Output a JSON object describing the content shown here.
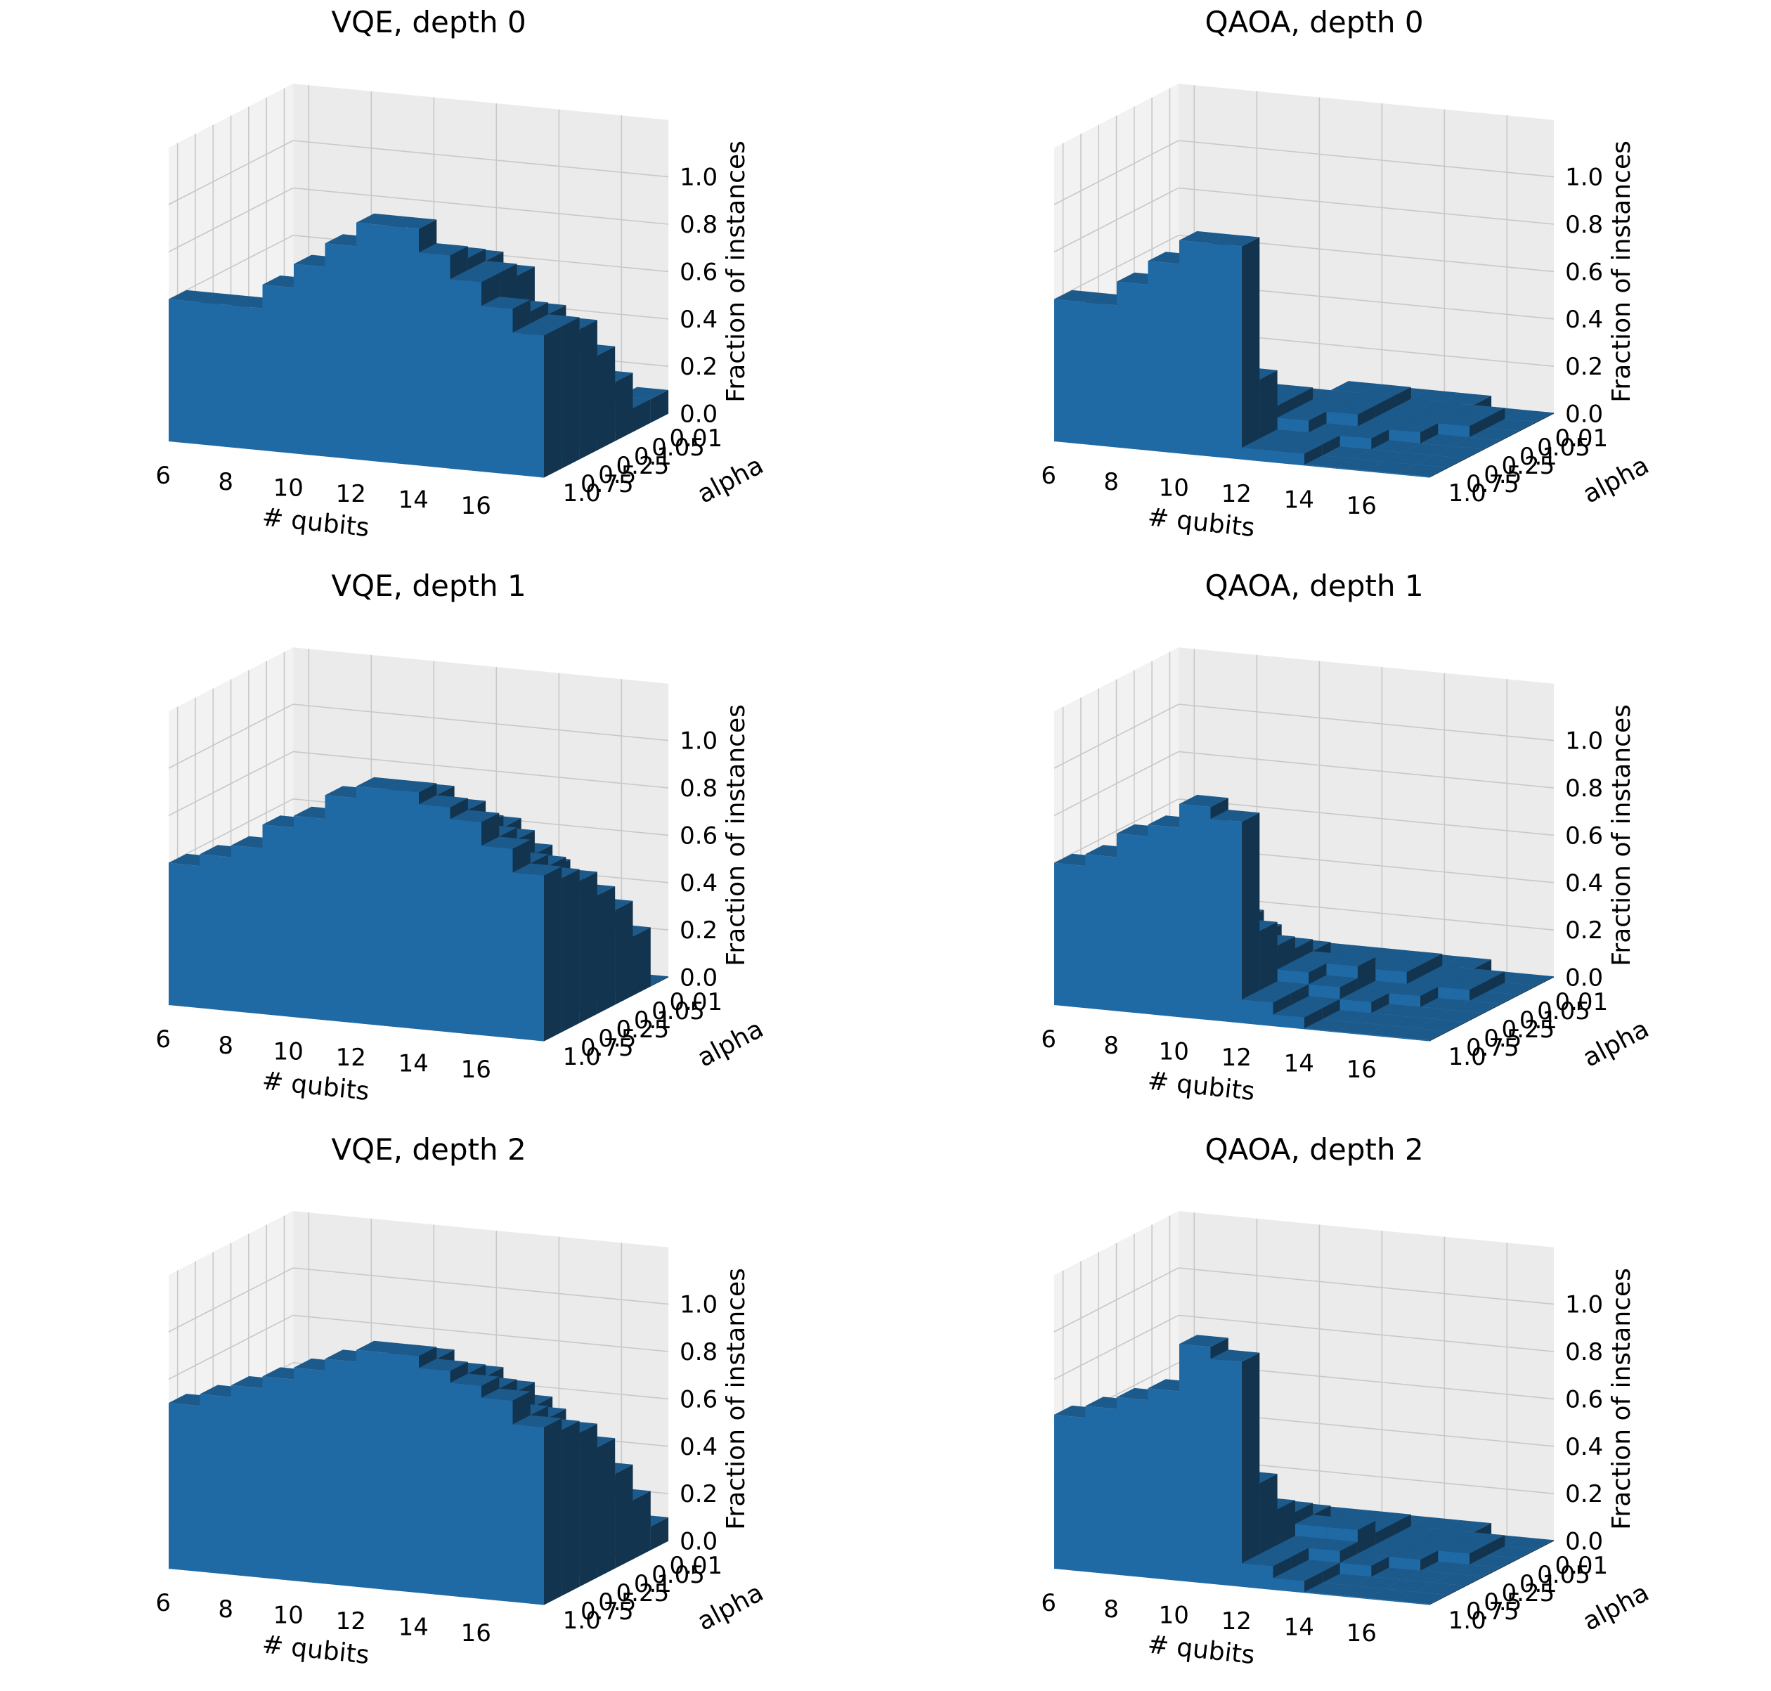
{
  "figure": {
    "colors": {
      "bar_top": "#1c5a8c",
      "bar_front": "#1f6aa5",
      "bar_side": "#12344f",
      "pane_back": "#ebebeb",
      "pane_side": "#f2f2f2",
      "pane_floor": "#e6e6e6",
      "grid": "#c8c8c8"
    }
  },
  "chart_data": [
    {
      "type": "bar3d",
      "title": "VQE, depth 0",
      "xlabel": "# qubits",
      "ylabel": "alpha",
      "zlabel": "Fraction of instances",
      "x": [
        6,
        7,
        8,
        9,
        10,
        11,
        12,
        13,
        14,
        15,
        16,
        17
      ],
      "x_ticks": [
        "6",
        "8",
        "10",
        "12",
        "14",
        "16"
      ],
      "y_categories": [
        "1.0",
        "0.75",
        "0.5",
        "0.25",
        "0.1",
        "0.05",
        "0.01"
      ],
      "z_ticks": [
        "0.0",
        "0.2",
        "0.4",
        "0.6",
        "0.8",
        "1.0"
      ],
      "zlim": [
        0,
        1
      ],
      "values": [
        [
          0.6,
          0.6,
          0.6,
          0.7,
          0.8,
          0.9,
          1.0,
          1.0,
          0.9,
          0.8,
          0.7,
          0.6
        ],
        [
          0.3,
          0.35,
          0.4,
          0.45,
          0.6,
          0.7,
          0.8,
          0.85,
          0.85,
          0.8,
          0.65,
          0.6
        ],
        [
          0.3,
          0.3,
          0.35,
          0.35,
          0.45,
          0.5,
          0.65,
          0.75,
          0.8,
          0.75,
          0.6,
          0.55
        ],
        [
          0.2,
          0.2,
          0.25,
          0.3,
          0.35,
          0.4,
          0.5,
          0.6,
          0.65,
          0.55,
          0.45,
          0.4
        ],
        [
          0.15,
          0.2,
          0.2,
          0.25,
          0.3,
          0.35,
          0.4,
          0.45,
          0.5,
          0.4,
          0.3,
          0.25
        ],
        [
          0.1,
          0.1,
          0.15,
          0.15,
          0.2,
          0.2,
          0.25,
          0.25,
          0.3,
          0.25,
          0.15,
          0.1
        ],
        [
          0.05,
          0.05,
          0.05,
          0.1,
          0.1,
          0.1,
          0.1,
          0.1,
          0.1,
          0.05,
          0.05,
          0.1
        ]
      ]
    },
    {
      "type": "bar3d",
      "title": "QAOA, depth 0",
      "xlabel": "# qubits",
      "ylabel": "alpha",
      "zlabel": "Fraction of instances",
      "x": [
        6,
        7,
        8,
        9,
        10,
        11,
        12,
        13,
        14,
        15,
        16,
        17
      ],
      "x_ticks": [
        "6",
        "8",
        "10",
        "12",
        "14",
        "16"
      ],
      "y_categories": [
        "1.0",
        "0.75",
        "0.5",
        "0.25",
        "0.1",
        "0.05",
        "0.01"
      ],
      "z_ticks": [
        "0.0",
        "0.2",
        "0.4",
        "0.6",
        "0.8",
        "1.0"
      ],
      "zlim": [
        0,
        1
      ],
      "values": [
        [
          0.6,
          0.6,
          0.7,
          0.8,
          0.9,
          0.9,
          0.05,
          0.05,
          0.0,
          0.0,
          0.0,
          0.0
        ],
        [
          0.15,
          0.1,
          0.1,
          0.15,
          0.35,
          0.3,
          0.05,
          0.05,
          0.0,
          0.0,
          0.0,
          0.0
        ],
        [
          0.1,
          0.1,
          0.15,
          0.2,
          0.2,
          0.15,
          0.1,
          0.05,
          0.05,
          0.0,
          0.0,
          0.0
        ],
        [
          0.05,
          0.05,
          0.1,
          0.1,
          0.15,
          0.15,
          0.1,
          0.1,
          0.05,
          0.05,
          0.0,
          0.0
        ],
        [
          0.0,
          0.05,
          0.05,
          0.1,
          0.1,
          0.1,
          0.1,
          0.1,
          0.05,
          0.05,
          0.05,
          0.0
        ],
        [
          0.0,
          0.0,
          0.05,
          0.05,
          0.05,
          0.05,
          0.1,
          0.1,
          0.05,
          0.05,
          0.05,
          0.0
        ],
        [
          0.0,
          0.0,
          0.0,
          0.0,
          0.0,
          0.0,
          0.0,
          0.05,
          0.05,
          0.05,
          0.0,
          0.0
        ]
      ]
    },
    {
      "type": "bar3d",
      "title": "VQE, depth 1",
      "xlabel": "# qubits",
      "ylabel": "alpha",
      "zlabel": "Fraction of instances",
      "x": [
        6,
        7,
        8,
        9,
        10,
        11,
        12,
        13,
        14,
        15,
        16,
        17
      ],
      "x_ticks": [
        "6",
        "8",
        "10",
        "12",
        "14",
        "16"
      ],
      "y_categories": [
        "1.0",
        "0.75",
        "0.5",
        "0.25",
        "0.1",
        "0.05",
        "0.01"
      ],
      "z_ticks": [
        "0.0",
        "0.2",
        "0.4",
        "0.6",
        "0.8",
        "1.0"
      ],
      "zlim": [
        0,
        1
      ],
      "values": [
        [
          0.6,
          0.65,
          0.7,
          0.8,
          0.85,
          0.95,
          1.0,
          1.0,
          0.95,
          0.9,
          0.8,
          0.7
        ],
        [
          0.4,
          0.45,
          0.55,
          0.6,
          0.7,
          0.8,
          0.9,
          0.95,
          0.9,
          0.8,
          0.7,
          0.65
        ],
        [
          0.35,
          0.35,
          0.45,
          0.55,
          0.65,
          0.7,
          0.8,
          0.85,
          0.8,
          0.75,
          0.65,
          0.6
        ],
        [
          0.3,
          0.3,
          0.4,
          0.45,
          0.55,
          0.6,
          0.65,
          0.7,
          0.75,
          0.65,
          0.55,
          0.5
        ],
        [
          0.25,
          0.25,
          0.3,
          0.35,
          0.45,
          0.5,
          0.55,
          0.55,
          0.6,
          0.55,
          0.45,
          0.4
        ],
        [
          0.15,
          0.15,
          0.2,
          0.25,
          0.3,
          0.35,
          0.4,
          0.4,
          0.45,
          0.4,
          0.3,
          0.25
        ],
        [
          0.05,
          0.05,
          0.1,
          0.1,
          0.15,
          0.15,
          0.2,
          0.2,
          0.2,
          0.15,
          0.1,
          0.0
        ]
      ]
    },
    {
      "type": "bar3d",
      "title": "QAOA, depth 1",
      "xlabel": "# qubits",
      "ylabel": "alpha",
      "zlabel": "Fraction of instances",
      "x": [
        6,
        7,
        8,
        9,
        10,
        11,
        12,
        13,
        14,
        15,
        16,
        17
      ],
      "x_ticks": [
        "6",
        "8",
        "10",
        "12",
        "14",
        "16"
      ],
      "y_categories": [
        "1.0",
        "0.75",
        "0.5",
        "0.25",
        "0.1",
        "0.05",
        "0.01"
      ],
      "z_ticks": [
        "0.0",
        "0.2",
        "0.4",
        "0.6",
        "0.8",
        "1.0"
      ],
      "zlim": [
        0,
        1
      ],
      "values": [
        [
          0.6,
          0.65,
          0.75,
          0.8,
          0.9,
          0.85,
          0.1,
          0.05,
          0.0,
          0.0,
          0.0,
          0.0
        ],
        [
          0.25,
          0.2,
          0.25,
          0.3,
          0.4,
          0.35,
          0.1,
          0.05,
          0.0,
          0.0,
          0.0,
          0.0
        ],
        [
          0.2,
          0.2,
          0.25,
          0.3,
          0.35,
          0.25,
          0.15,
          0.1,
          0.05,
          0.0,
          0.0,
          0.0
        ],
        [
          0.1,
          0.15,
          0.15,
          0.2,
          0.25,
          0.2,
          0.15,
          0.15,
          0.05,
          0.05,
          0.0,
          0.0
        ],
        [
          0.05,
          0.1,
          0.1,
          0.15,
          0.15,
          0.15,
          0.1,
          0.1,
          0.1,
          0.05,
          0.05,
          0.0
        ],
        [
          0.0,
          0.05,
          0.05,
          0.1,
          0.1,
          0.1,
          0.1,
          0.1,
          0.1,
          0.05,
          0.05,
          0.0
        ],
        [
          0.0,
          0.0,
          0.0,
          0.05,
          0.05,
          0.05,
          0.05,
          0.05,
          0.05,
          0.05,
          0.0,
          0.0
        ]
      ]
    },
    {
      "type": "bar3d",
      "title": "VQE, depth 2",
      "xlabel": "# qubits",
      "ylabel": "alpha",
      "zlabel": "Fraction of instances",
      "x": [
        6,
        7,
        8,
        9,
        10,
        11,
        12,
        13,
        14,
        15,
        16,
        17
      ],
      "x_ticks": [
        "6",
        "8",
        "10",
        "12",
        "14",
        "16"
      ],
      "y_categories": [
        "1.0",
        "0.75",
        "0.5",
        "0.25",
        "0.1",
        "0.05",
        "0.01"
      ],
      "z_ticks": [
        "0.0",
        "0.2",
        "0.4",
        "0.6",
        "0.8",
        "1.0"
      ],
      "zlim": [
        0,
        1
      ],
      "values": [
        [
          0.7,
          0.75,
          0.8,
          0.85,
          0.9,
          0.95,
          1.0,
          1.0,
          0.95,
          0.9,
          0.85,
          0.75
        ],
        [
          0.45,
          0.5,
          0.55,
          0.65,
          0.75,
          0.8,
          0.9,
          0.95,
          0.9,
          0.85,
          0.75,
          0.7
        ],
        [
          0.35,
          0.4,
          0.45,
          0.55,
          0.65,
          0.7,
          0.8,
          0.85,
          0.85,
          0.8,
          0.7,
          0.65
        ],
        [
          0.3,
          0.3,
          0.4,
          0.45,
          0.55,
          0.6,
          0.65,
          0.7,
          0.75,
          0.7,
          0.6,
          0.55
        ],
        [
          0.2,
          0.25,
          0.3,
          0.35,
          0.45,
          0.5,
          0.55,
          0.6,
          0.6,
          0.55,
          0.45,
          0.4
        ],
        [
          0.15,
          0.15,
          0.2,
          0.25,
          0.3,
          0.35,
          0.35,
          0.4,
          0.4,
          0.35,
          0.3,
          0.25
        ],
        [
          0.05,
          0.05,
          0.1,
          0.1,
          0.15,
          0.15,
          0.15,
          0.2,
          0.2,
          0.15,
          0.1,
          0.1
        ]
      ]
    },
    {
      "type": "bar3d",
      "title": "QAOA, depth 2",
      "xlabel": "# qubits",
      "ylabel": "alpha",
      "zlabel": "Fraction of instances",
      "x": [
        6,
        7,
        8,
        9,
        10,
        11,
        12,
        13,
        14,
        15,
        16,
        17
      ],
      "x_ticks": [
        "6",
        "8",
        "10",
        "12",
        "14",
        "16"
      ],
      "y_categories": [
        "1.0",
        "0.75",
        "0.5",
        "0.25",
        "0.1",
        "0.05",
        "0.01"
      ],
      "z_ticks": [
        "0.0",
        "0.2",
        "0.4",
        "0.6",
        "0.8",
        "1.0"
      ],
      "zlim": [
        0,
        1
      ],
      "values": [
        [
          0.65,
          0.7,
          0.75,
          0.8,
          1.0,
          0.95,
          0.1,
          0.05,
          0.0,
          0.0,
          0.0,
          0.0
        ],
        [
          0.3,
          0.3,
          0.35,
          0.35,
          0.45,
          0.4,
          0.1,
          0.05,
          0.0,
          0.0,
          0.0,
          0.0
        ],
        [
          0.2,
          0.2,
          0.25,
          0.25,
          0.3,
          0.25,
          0.1,
          0.1,
          0.05,
          0.0,
          0.0,
          0.0
        ],
        [
          0.1,
          0.15,
          0.15,
          0.2,
          0.2,
          0.2,
          0.15,
          0.15,
          0.05,
          0.05,
          0.0,
          0.0
        ],
        [
          0.05,
          0.1,
          0.1,
          0.1,
          0.15,
          0.15,
          0.1,
          0.1,
          0.05,
          0.05,
          0.05,
          0.0
        ],
        [
          0.0,
          0.05,
          0.05,
          0.05,
          0.1,
          0.1,
          0.1,
          0.1,
          0.05,
          0.05,
          0.05,
          0.0
        ],
        [
          0.0,
          0.0,
          0.0,
          0.05,
          0.05,
          0.05,
          0.05,
          0.05,
          0.05,
          0.05,
          0.0,
          0.0
        ]
      ]
    }
  ]
}
